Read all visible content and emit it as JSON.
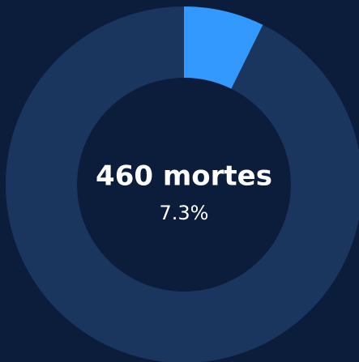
{
  "chart_data": {
    "type": "pie",
    "title": "460 mortes",
    "values": [
      7.3,
      92.7
    ],
    "value_labels": [
      "7.3%",
      null
    ],
    "colors": [
      "#3399ff",
      "#1a365f"
    ],
    "start_angle": 0,
    "direction": "clockwise",
    "hole": 0.6
  }
}
